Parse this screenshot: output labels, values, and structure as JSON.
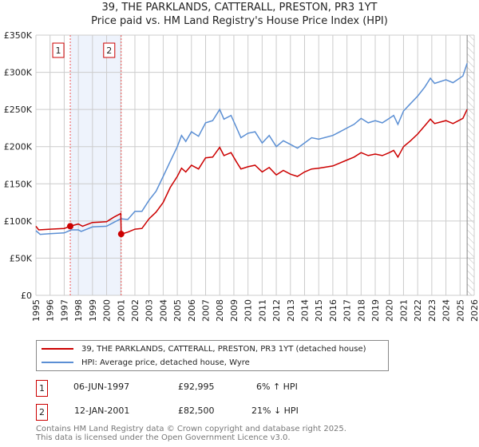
{
  "chart_data": {
    "type": "line",
    "title": "39, THE PARKLANDS, CATTERALL, PRESTON, PR3 1YT",
    "subtitle": "Price paid vs. HM Land Registry's House Price Index (HPI)",
    "xlim": [
      1995,
      2026
    ],
    "ylim": [
      0,
      350000
    ],
    "x_ticks": [
      "1995",
      "1996",
      "1997",
      "1998",
      "1999",
      "2000",
      "2001",
      "2002",
      "2003",
      "2004",
      "2005",
      "2006",
      "2007",
      "2008",
      "2009",
      "2010",
      "2011",
      "2012",
      "2013",
      "2014",
      "2015",
      "2016",
      "2017",
      "2018",
      "2019",
      "2020",
      "2021",
      "2022",
      "2023",
      "2024",
      "2025",
      "2026"
    ],
    "y_ticks": [
      {
        "v": 0,
        "l": "£0"
      },
      {
        "v": 50000,
        "l": "£50K"
      },
      {
        "v": 100000,
        "l": "£100K"
      },
      {
        "v": 150000,
        "l": "£150K"
      },
      {
        "v": 200000,
        "l": "£200K"
      },
      {
        "v": 250000,
        "l": "£250K"
      },
      {
        "v": 300000,
        "l": "£300K"
      },
      {
        "v": 350000,
        "l": "£350K"
      }
    ],
    "grid": true,
    "shaded_range": [
      1997.43,
      2001.03
    ],
    "future_hatch_from": 2025.5,
    "series": [
      {
        "name": "39, THE PARKLANDS, CATTERALL, PRESTON, PR3 1YT (detached house)",
        "color": "#cc0000",
        "x": [
          1995,
          1995.2,
          1996,
          1997,
          1997.43,
          1998,
          1998.3,
          1999,
          2000,
          2000.5,
          2001,
          2001.03,
          2001.5,
          2002,
          2002.5,
          2003,
          2003.5,
          2004,
          2004.5,
          2005,
          2005.3,
          2005.6,
          2006,
          2006.5,
          2007,
          2007.5,
          2008,
          2008.3,
          2008.8,
          2009.2,
          2009.5,
          2010,
          2010.5,
          2011,
          2011.5,
          2012,
          2012.5,
          2013,
          2013.5,
          2014,
          2014.5,
          2015,
          2016,
          2016.5,
          2017,
          2017.5,
          2018,
          2018.5,
          2019,
          2019.5,
          2020,
          2020.3,
          2020.6,
          2021,
          2021.5,
          2022,
          2022.5,
          2022.9,
          2023.2,
          2024,
          2024.5,
          2025.2,
          2025.5
        ],
        "y": [
          93,
          88,
          89,
          90,
          93,
          96,
          93,
          98,
          99,
          105,
          110,
          82.5,
          85,
          89,
          90,
          103,
          112,
          125,
          145,
          160,
          171,
          166,
          175,
          170,
          185,
          186,
          199,
          188,
          192,
          179,
          170,
          173,
          175,
          166,
          172,
          162,
          168,
          163,
          160,
          166,
          170,
          171,
          174,
          178,
          182,
          186,
          192,
          188,
          190,
          188,
          192,
          195,
          186,
          200,
          208,
          217,
          228,
          237,
          231,
          235,
          231,
          238,
          250
        ]
      },
      {
        "name": "HPI: Average price, detached house, Wyre",
        "color": "#5b8fd4",
        "x": [
          1995,
          1995.3,
          1996,
          1997,
          1997.5,
          1998,
          1998.2,
          1999,
          2000,
          2000.5,
          2001,
          2001.5,
          2002,
          2002.5,
          2003,
          2003.5,
          2004,
          2004.5,
          2005,
          2005.3,
          2005.6,
          2006,
          2006.5,
          2007,
          2007.5,
          2008,
          2008.3,
          2008.8,
          2009.2,
          2009.5,
          2010,
          2010.5,
          2011,
          2011.5,
          2012,
          2012.5,
          2013,
          2013.5,
          2014,
          2014.5,
          2015,
          2016,
          2016.5,
          2017,
          2017.5,
          2018,
          2018.5,
          2019,
          2019.5,
          2020,
          2020.3,
          2020.6,
          2021,
          2021.5,
          2022,
          2022.5,
          2022.9,
          2023.2,
          2024,
          2024.5,
          2025.2,
          2025.5
        ],
        "y": [
          87,
          82,
          83,
          84,
          88,
          88,
          86,
          92,
          93,
          98,
          103,
          102,
          113,
          113,
          128,
          140,
          160,
          180,
          200,
          215,
          207,
          220,
          214,
          232,
          235,
          250,
          237,
          242,
          225,
          212,
          218,
          220,
          205,
          215,
          200,
          208,
          203,
          198,
          205,
          212,
          210,
          215,
          220,
          225,
          230,
          238,
          232,
          235,
          232,
          238,
          242,
          230,
          248,
          258,
          268,
          280,
          292,
          285,
          290,
          286,
          295,
          312
        ]
      }
    ],
    "annotations": [
      {
        "label": "1",
        "x": 1997.43,
        "y": 92995
      },
      {
        "label": "2",
        "x": 2001.03,
        "y": 82500
      }
    ]
  },
  "legend": {
    "items": [
      "39, THE PARKLANDS, CATTERALL, PRESTON, PR3 1YT (detached house)",
      "HPI: Average price, detached house, Wyre"
    ]
  },
  "transactions": [
    {
      "num": "1",
      "date": "06-JUN-1997",
      "price": "£92,995",
      "hpi": "6% ↑ HPI"
    },
    {
      "num": "2",
      "date": "12-JAN-2001",
      "price": "£82,500",
      "hpi": "21% ↓ HPI"
    }
  ],
  "footer": {
    "line1": "Contains HM Land Registry data © Crown copyright and database right 2025.",
    "line2": "This data is licensed under the Open Government Licence v3.0."
  }
}
